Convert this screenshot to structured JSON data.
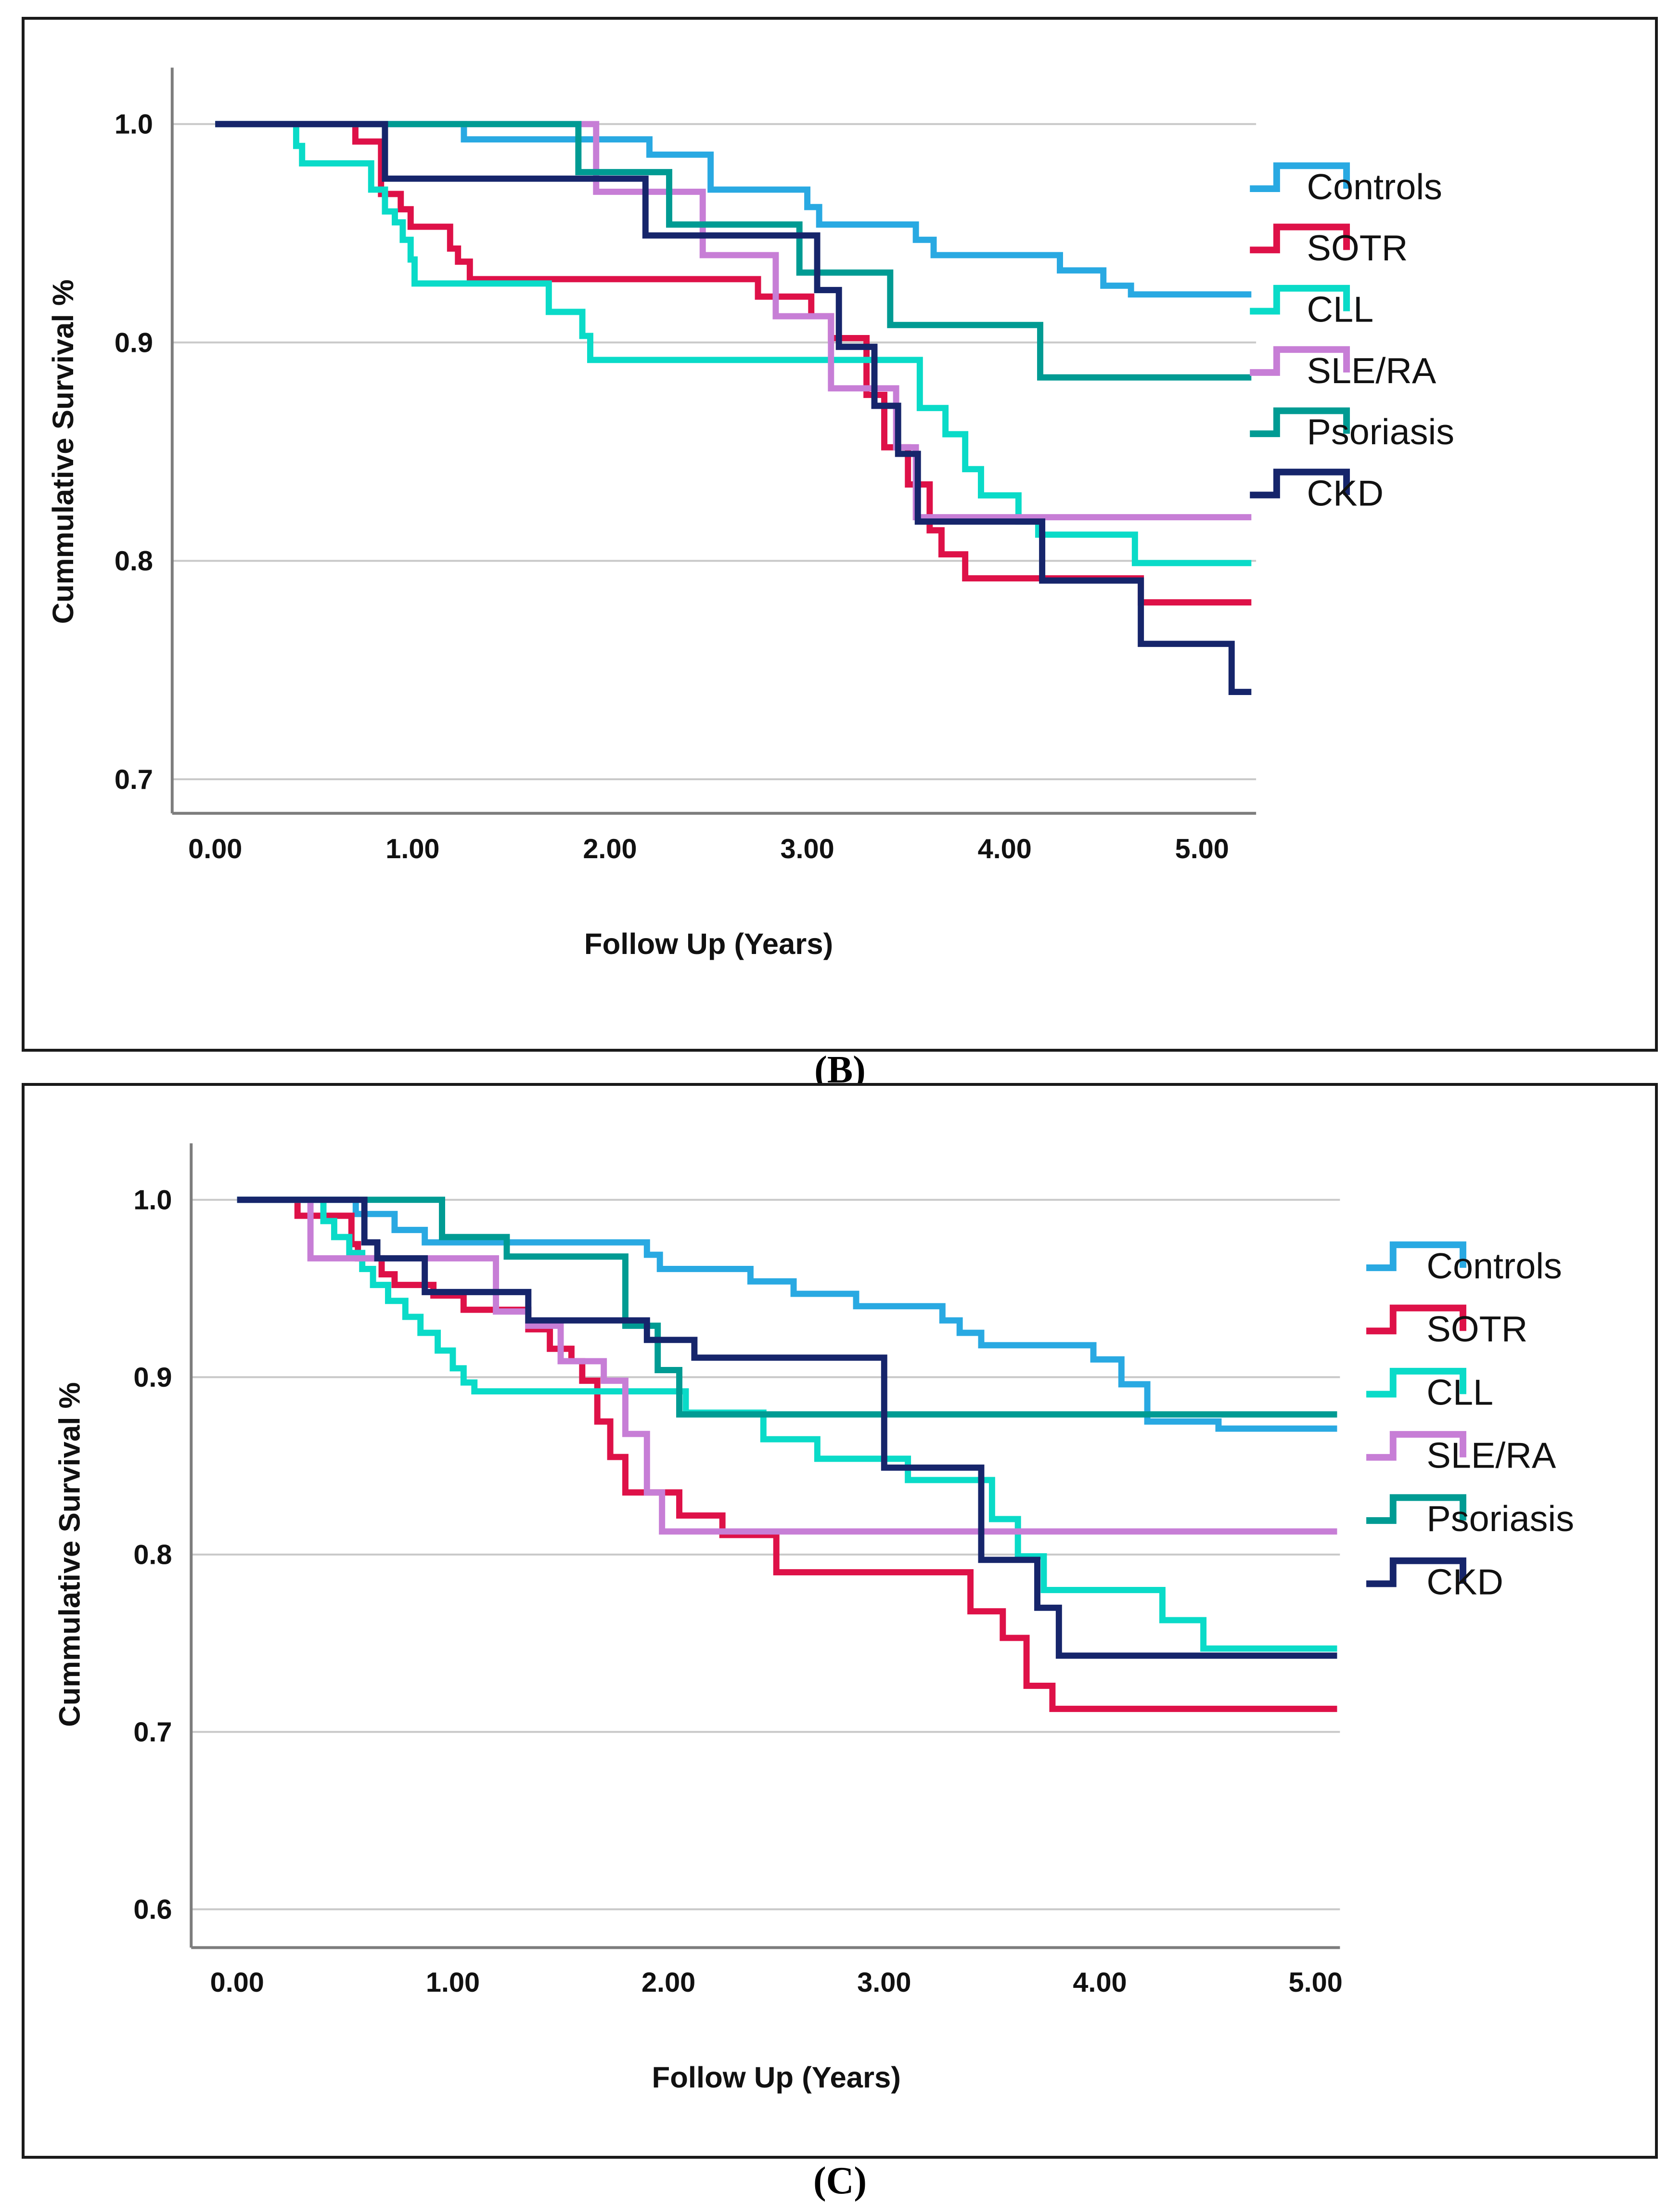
{
  "figure": {
    "captions": [
      "(B)",
      "(C)"
    ]
  },
  "colors": {
    "controls": "#29A9E2",
    "sotr": "#DE1148",
    "cll": "#0ADBC8",
    "sle_ra": "#C77ED6",
    "psoriasis": "#009B93",
    "ckd": "#16256B",
    "gridline": "#C9C9C9",
    "axis": "#7D7D7D",
    "text": "#111111"
  },
  "chart_data": [
    {
      "type": "line",
      "subtype": "kaplan-meier-step",
      "panel": "B",
      "title": "",
      "xlabel": "Follow Up (Years)",
      "ylabel": "Cummulative Survival %",
      "x_ticks": [
        "0.00",
        "1.00",
        "2.00",
        "3.00",
        "4.00",
        "5.00"
      ],
      "x_tick_values": [
        0,
        1,
        2,
        3,
        4,
        5
      ],
      "y_ticks": [
        "1.0",
        "0.9",
        "0.8",
        "0.7"
      ],
      "y_tick_values": [
        1.0,
        0.9,
        0.8,
        0.7
      ],
      "xlim": [
        0,
        5.25
      ],
      "ylim": [
        0.7,
        1.0
      ],
      "x_end": 5.25,
      "grid": true,
      "legend_position": "right",
      "series": [
        {
          "name": "Controls",
          "color": "#29A9E2",
          "points": [
            [
              0,
              1.0
            ],
            [
              1.26,
              0.993
            ],
            [
              2.2,
              0.986
            ],
            [
              2.51,
              0.97
            ],
            [
              3.0,
              0.962
            ],
            [
              3.06,
              0.954
            ],
            [
              3.55,
              0.947
            ],
            [
              3.64,
              0.94
            ],
            [
              4.28,
              0.933
            ],
            [
              4.5,
              0.926
            ],
            [
              4.64,
              0.922
            ]
          ]
        },
        {
          "name": "SOTR",
          "color": "#DE1148",
          "points": [
            [
              0,
              1.0
            ],
            [
              0.71,
              0.992
            ],
            [
              0.84,
              0.968
            ],
            [
              0.94,
              0.961
            ],
            [
              0.99,
              0.953
            ],
            [
              1.19,
              0.943
            ],
            [
              1.23,
              0.937
            ],
            [
              1.29,
              0.929
            ],
            [
              2.75,
              0.921
            ],
            [
              3.02,
              0.912
            ],
            [
              3.12,
              0.902
            ],
            [
              3.3,
              0.876
            ],
            [
              3.39,
              0.852
            ],
            [
              3.51,
              0.835
            ],
            [
              3.62,
              0.814
            ],
            [
              3.68,
              0.803
            ],
            [
              3.8,
              0.792
            ],
            [
              4.69,
              0.781
            ]
          ]
        },
        {
          "name": "CLL",
          "color": "#0ADBC8",
          "points": [
            [
              0,
              1.0
            ],
            [
              0.41,
              0.99
            ],
            [
              0.44,
              0.982
            ],
            [
              0.79,
              0.97
            ],
            [
              0.86,
              0.96
            ],
            [
              0.91,
              0.955
            ],
            [
              0.95,
              0.947
            ],
            [
              0.99,
              0.938
            ],
            [
              1.01,
              0.927
            ],
            [
              1.69,
              0.914
            ],
            [
              1.86,
              0.903
            ],
            [
              1.9,
              0.892
            ],
            [
              3.57,
              0.87
            ],
            [
              3.7,
              0.858
            ],
            [
              3.8,
              0.842
            ],
            [
              3.88,
              0.83
            ],
            [
              4.07,
              0.818
            ],
            [
              4.17,
              0.812
            ],
            [
              4.66,
              0.799
            ]
          ]
        },
        {
          "name": "SLE/RA",
          "color": "#C77ED6",
          "points": [
            [
              0,
              1.0
            ],
            [
              1.93,
              0.969
            ],
            [
              2.47,
              0.94
            ],
            [
              2.84,
              0.912
            ],
            [
              3.12,
              0.879
            ],
            [
              3.45,
              0.852
            ],
            [
              3.55,
              0.82
            ]
          ]
        },
        {
          "name": "Psoriasis",
          "color": "#009B93",
          "points": [
            [
              0,
              1.0
            ],
            [
              1.84,
              0.978
            ],
            [
              2.3,
              0.954
            ],
            [
              2.96,
              0.932
            ],
            [
              3.42,
              0.908
            ],
            [
              4.18,
              0.884
            ]
          ]
        },
        {
          "name": "CKD",
          "color": "#16256B",
          "points": [
            [
              0,
              1.0
            ],
            [
              0.86,
              0.975
            ],
            [
              2.18,
              0.949
            ],
            [
              3.05,
              0.924
            ],
            [
              3.16,
              0.898
            ],
            [
              3.34,
              0.871
            ],
            [
              3.46,
              0.849
            ],
            [
              3.56,
              0.818
            ],
            [
              4.19,
              0.791
            ],
            [
              4.69,
              0.762
            ],
            [
              5.15,
              0.74
            ]
          ]
        }
      ]
    },
    {
      "type": "line",
      "subtype": "kaplan-meier-step",
      "panel": "C",
      "title": "",
      "xlabel": "Follow Up (Years)",
      "ylabel": "Cummulative Survival %",
      "x_ticks": [
        "0.00",
        "1.00",
        "2.00",
        "3.00",
        "4.00",
        "5.00"
      ],
      "x_tick_values": [
        0,
        1,
        2,
        3,
        4,
        5
      ],
      "y_ticks": [
        "1.0",
        "0.9",
        "0.8",
        "0.7",
        "0.6"
      ],
      "y_tick_values": [
        1.0,
        0.9,
        0.8,
        0.7,
        0.6
      ],
      "xlim": [
        0,
        5.1
      ],
      "ylim": [
        0.6,
        1.0
      ],
      "x_end": 5.1,
      "grid": true,
      "legend_position": "right",
      "series": [
        {
          "name": "Controls",
          "color": "#29A9E2",
          "points": [
            [
              0,
              1.0
            ],
            [
              0.55,
              0.992
            ],
            [
              0.73,
              0.983
            ],
            [
              0.87,
              0.976
            ],
            [
              1.9,
              0.969
            ],
            [
              1.96,
              0.961
            ],
            [
              2.38,
              0.954
            ],
            [
              2.58,
              0.947
            ],
            [
              2.87,
              0.94
            ],
            [
              3.27,
              0.932
            ],
            [
              3.35,
              0.925
            ],
            [
              3.45,
              0.918
            ],
            [
              3.97,
              0.91
            ],
            [
              4.1,
              0.896
            ],
            [
              4.22,
              0.875
            ],
            [
              4.55,
              0.871
            ]
          ]
        },
        {
          "name": "SOTR",
          "color": "#DE1148",
          "points": [
            [
              0,
              1.0
            ],
            [
              0.28,
              0.991
            ],
            [
              0.53,
              0.975
            ],
            [
              0.56,
              0.967
            ],
            [
              0.67,
              0.958
            ],
            [
              0.73,
              0.952
            ],
            [
              0.91,
              0.946
            ],
            [
              1.05,
              0.938
            ],
            [
              1.35,
              0.927
            ],
            [
              1.45,
              0.916
            ],
            [
              1.55,
              0.909
            ],
            [
              1.6,
              0.898
            ],
            [
              1.67,
              0.875
            ],
            [
              1.73,
              0.855
            ],
            [
              1.8,
              0.835
            ],
            [
              2.05,
              0.822
            ],
            [
              2.25,
              0.811
            ],
            [
              2.5,
              0.79
            ],
            [
              3.4,
              0.768
            ],
            [
              3.55,
              0.753
            ],
            [
              3.66,
              0.726
            ],
            [
              3.78,
              0.713
            ]
          ]
        },
        {
          "name": "CLL",
          "color": "#0ADBC8",
          "points": [
            [
              0,
              1.0
            ],
            [
              0.4,
              0.988
            ],
            [
              0.45,
              0.979
            ],
            [
              0.52,
              0.97
            ],
            [
              0.58,
              0.961
            ],
            [
              0.63,
              0.952
            ],
            [
              0.7,
              0.943
            ],
            [
              0.78,
              0.934
            ],
            [
              0.85,
              0.925
            ],
            [
              0.93,
              0.915
            ],
            [
              1.0,
              0.905
            ],
            [
              1.05,
              0.897
            ],
            [
              1.1,
              0.892
            ],
            [
              2.08,
              0.88
            ],
            [
              2.44,
              0.865
            ],
            [
              2.69,
              0.854
            ],
            [
              3.11,
              0.842
            ],
            [
              3.5,
              0.82
            ],
            [
              3.62,
              0.799
            ],
            [
              3.74,
              0.78
            ],
            [
              4.29,
              0.763
            ],
            [
              4.48,
              0.747
            ]
          ]
        },
        {
          "name": "SLE/RA",
          "color": "#C77ED6",
          "points": [
            [
              0,
              1.0
            ],
            [
              0.34,
              0.967
            ],
            [
              1.2,
              0.937
            ],
            [
              1.35,
              0.929
            ],
            [
              1.5,
              0.909
            ],
            [
              1.7,
              0.898
            ],
            [
              1.8,
              0.868
            ],
            [
              1.9,
              0.835
            ],
            [
              1.97,
              0.813
            ]
          ]
        },
        {
          "name": "Psoriasis",
          "color": "#009B93",
          "points": [
            [
              0,
              1.0
            ],
            [
              0.95,
              0.979
            ],
            [
              1.25,
              0.968
            ],
            [
              1.8,
              0.929
            ],
            [
              1.95,
              0.904
            ],
            [
              2.05,
              0.879
            ]
          ]
        },
        {
          "name": "CKD",
          "color": "#16256B",
          "points": [
            [
              0,
              1.0
            ],
            [
              0.59,
              0.976
            ],
            [
              0.65,
              0.967
            ],
            [
              0.87,
              0.948
            ],
            [
              1.35,
              0.932
            ],
            [
              1.9,
              0.921
            ],
            [
              2.12,
              0.911
            ],
            [
              3.0,
              0.849
            ],
            [
              3.45,
              0.797
            ],
            [
              3.71,
              0.77
            ],
            [
              3.81,
              0.743
            ]
          ]
        }
      ]
    }
  ]
}
